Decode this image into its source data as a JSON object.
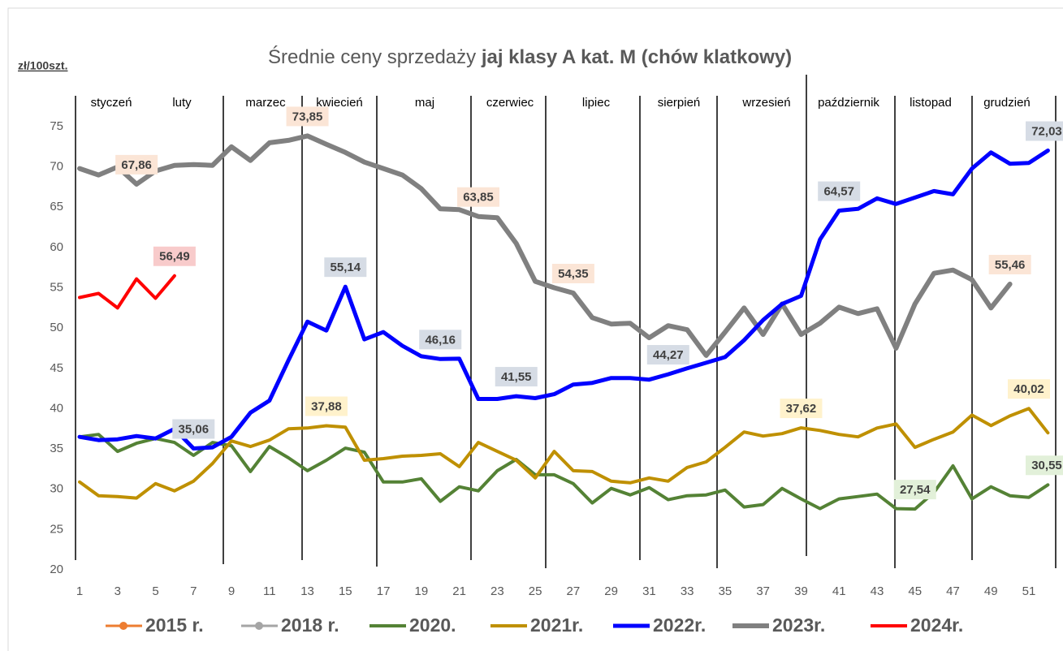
{
  "chart_data": {
    "type": "line",
    "title": "Średnie ceny sprzedaży ",
    "title_bold": "jaj klasy A kat.  M (chów klatkowy)",
    "y_label": "zł/100szt.",
    "months": [
      "styczeń",
      "luty",
      "marzec",
      "kwiecień",
      "maj",
      "czerwiec",
      "lipiec",
      "sierpień",
      "wrzesień",
      "październik",
      "listopad",
      "grudzień"
    ],
    "x": [
      1,
      2,
      3,
      4,
      5,
      6,
      7,
      8,
      9,
      10,
      11,
      12,
      13,
      14,
      15,
      16,
      17,
      18,
      19,
      20,
      21,
      22,
      23,
      24,
      25,
      26,
      27,
      28,
      29,
      30,
      31,
      32,
      33,
      34,
      35,
      36,
      37,
      38,
      39,
      40,
      41,
      42,
      43,
      44,
      45,
      46,
      47,
      48,
      49,
      50,
      51,
      52
    ],
    "xlim": [
      1,
      52
    ],
    "xticks": [
      1,
      3,
      5,
      7,
      9,
      11,
      13,
      15,
      17,
      19,
      21,
      23,
      25,
      27,
      29,
      31,
      33,
      35,
      37,
      39,
      41,
      43,
      45,
      47,
      49,
      51
    ],
    "ylim": [
      20,
      75
    ],
    "yticks": [
      20,
      25,
      30,
      35,
      40,
      45,
      50,
      55,
      60,
      65,
      70,
      75
    ],
    "grid": false,
    "legend": "bottom",
    "series": [
      {
        "name": "2015 r.",
        "color": "#ed7d31",
        "marker": true,
        "width": 3,
        "label_bg": "#fbe5d6",
        "values": [
          null,
          null,
          null,
          null,
          null,
          null,
          null,
          null,
          null,
          null,
          null,
          null,
          null,
          null,
          null,
          null,
          null,
          null,
          null,
          null,
          null,
          null,
          null,
          null,
          null,
          null,
          null,
          null,
          null,
          null,
          null,
          null,
          null,
          null,
          null,
          null,
          null,
          null,
          null,
          null,
          null,
          null,
          null,
          null,
          null,
          null,
          null,
          null,
          null,
          null,
          null,
          null
        ]
      },
      {
        "name": "2018 r.",
        "color": "#a5a5a5",
        "marker": true,
        "width": 3,
        "label_bg": "#ededed",
        "values": [
          null,
          null,
          null,
          null,
          null,
          null,
          null,
          null,
          null,
          null,
          null,
          null,
          null,
          null,
          null,
          null,
          null,
          null,
          null,
          null,
          null,
          null,
          null,
          null,
          null,
          null,
          null,
          null,
          null,
          null,
          null,
          null,
          null,
          null,
          null,
          null,
          null,
          null,
          null,
          null,
          null,
          null,
          null,
          null,
          null,
          null,
          null,
          null,
          null,
          null,
          null,
          null
        ]
      },
      {
        "name": "2020.",
        "color": "#548235",
        "marker": false,
        "width": 4,
        "label_bg": "#e2f0d9",
        "values": [
          36.5,
          36.8,
          34.7,
          35.7,
          36.3,
          35.8,
          34.2,
          35.8,
          35.4,
          32.2,
          35.3,
          33.9,
          32.3,
          33.6,
          35.1,
          34.6,
          30.9,
          30.9,
          31.3,
          28.5,
          30.3,
          29.8,
          32.3,
          33.7,
          31.8,
          31.8,
          30.7,
          28.3,
          30.1,
          29.3,
          30.2,
          28.7,
          29.2,
          29.3,
          29.9,
          27.8,
          28.1,
          30.1,
          28.8,
          27.6,
          28.8,
          29.1,
          29.4,
          27.6,
          27.54,
          29.6,
          32.9,
          28.8,
          30.3,
          29.2,
          29.0,
          30.55
        ],
        "value_labels": [
          null,
          null,
          null,
          null,
          null,
          null,
          null,
          null,
          null,
          null,
          null,
          null,
          null,
          null,
          null,
          null,
          null,
          null,
          null,
          null,
          null,
          null,
          null,
          null,
          null,
          null,
          null,
          null,
          null,
          null,
          null,
          null,
          null,
          null,
          null,
          null,
          null,
          null,
          null,
          null,
          null,
          null,
          null,
          null,
          "27,54",
          null,
          null,
          null,
          null,
          null,
          null,
          "30,55"
        ]
      },
      {
        "name": "2021r.",
        "color": "#bf9000",
        "marker": false,
        "width": 4,
        "label_bg": "#fff2cc",
        "values": [
          30.9,
          29.2,
          29.1,
          28.9,
          30.7,
          29.8,
          31.0,
          33.2,
          36.0,
          35.3,
          36.1,
          37.5,
          37.6,
          37.88,
          37.7,
          33.6,
          33.8,
          34.1,
          34.2,
          34.4,
          32.8,
          35.8,
          34.7,
          33.6,
          31.4,
          34.7,
          32.3,
          32.2,
          31.0,
          30.8,
          31.4,
          31.0,
          32.7,
          33.4,
          35.2,
          37.1,
          36.6,
          36.9,
          37.62,
          37.3,
          36.8,
          36.5,
          37.6,
          38.1,
          35.2,
          36.2,
          37.1,
          39.2,
          37.9,
          39.1,
          40.02,
          37.0
        ],
        "value_labels": [
          null,
          null,
          null,
          null,
          null,
          null,
          null,
          null,
          null,
          null,
          null,
          null,
          null,
          "37,88",
          null,
          null,
          null,
          null,
          null,
          null,
          null,
          null,
          null,
          null,
          null,
          null,
          null,
          null,
          null,
          null,
          null,
          null,
          null,
          null,
          null,
          null,
          null,
          null,
          "37,62",
          null,
          null,
          null,
          null,
          null,
          null,
          null,
          null,
          null,
          null,
          null,
          "40,02",
          null
        ]
      },
      {
        "name": "2022r.",
        "color": "#0000ff",
        "marker": false,
        "width": 5,
        "label_bg": "#d6dce5",
        "values": [
          36.5,
          36.1,
          36.2,
          36.6,
          36.3,
          37.5,
          35.06,
          35.2,
          36.5,
          39.5,
          41.0,
          46.0,
          50.8,
          49.7,
          55.14,
          48.6,
          49.5,
          47.8,
          46.5,
          46.16,
          46.2,
          41.2,
          41.2,
          41.55,
          41.3,
          41.8,
          43.0,
          43.2,
          43.8,
          43.8,
          43.6,
          44.27,
          45.0,
          45.7,
          46.4,
          48.5,
          51.0,
          53.0,
          54.0,
          61.0,
          64.57,
          64.8,
          66.1,
          65.4,
          66.2,
          67.0,
          66.6,
          69.8,
          71.8,
          70.4,
          70.5,
          72.03
        ],
        "value_labels": [
          null,
          null,
          null,
          null,
          null,
          null,
          "35,06",
          null,
          null,
          null,
          null,
          null,
          null,
          null,
          "55,14",
          null,
          null,
          null,
          null,
          "46,16",
          null,
          null,
          null,
          "41,55",
          null,
          null,
          null,
          null,
          null,
          null,
          null,
          "44,27",
          null,
          null,
          null,
          null,
          null,
          null,
          null,
          null,
          "64,57",
          null,
          null,
          null,
          null,
          null,
          null,
          null,
          null,
          null,
          null,
          "72,03"
        ]
      },
      {
        "name": "2023r.",
        "color": "#808080",
        "marker": false,
        "width": 6,
        "label_bg": "#fbe5d6",
        "values": [
          69.8,
          69.0,
          70.0,
          67.86,
          69.5,
          70.2,
          70.3,
          70.2,
          72.5,
          70.8,
          73.0,
          73.3,
          73.85,
          72.8,
          71.8,
          70.6,
          69.8,
          69.0,
          67.3,
          64.8,
          64.7,
          63.85,
          63.7,
          60.5,
          55.8,
          55.0,
          54.35,
          51.3,
          50.5,
          50.6,
          48.8,
          50.3,
          49.8,
          46.6,
          49.5,
          52.5,
          49.2,
          53.0,
          49.2,
          50.6,
          52.6,
          51.8,
          52.4,
          47.5,
          53.0,
          56.8,
          57.2,
          56.0,
          52.5,
          55.46,
          null,
          null
        ],
        "value_labels": [
          null,
          null,
          null,
          "67,86",
          null,
          null,
          null,
          null,
          null,
          null,
          null,
          null,
          "73,85",
          null,
          null,
          null,
          null,
          null,
          null,
          null,
          null,
          "63,85",
          null,
          null,
          null,
          null,
          "54,35",
          null,
          null,
          null,
          null,
          null,
          null,
          null,
          null,
          null,
          null,
          null,
          null,
          null,
          null,
          null,
          null,
          null,
          null,
          null,
          null,
          null,
          null,
          "55,46",
          null,
          null
        ]
      },
      {
        "name": "2024r.",
        "color": "#ff0000",
        "marker": false,
        "width": 4,
        "label_bg": "#f8cbcb",
        "values": [
          53.8,
          54.3,
          52.5,
          56.1,
          53.7,
          56.49,
          null,
          null,
          null,
          null,
          null,
          null,
          null,
          null,
          null,
          null,
          null,
          null,
          null,
          null,
          null,
          null,
          null,
          null,
          null,
          null,
          null,
          null,
          null,
          null,
          null,
          null,
          null,
          null,
          null,
          null,
          null,
          null,
          null,
          null,
          null,
          null,
          null,
          null,
          null,
          null,
          null,
          null,
          null,
          null,
          null,
          null
        ],
        "value_labels": [
          null,
          null,
          null,
          null,
          null,
          "56,49",
          null,
          null,
          null,
          null,
          null,
          null,
          null,
          null,
          null,
          null,
          null,
          null,
          null,
          null,
          null,
          null,
          null,
          null,
          null,
          null,
          null,
          null,
          null,
          null,
          null,
          null,
          null,
          null,
          null,
          null,
          null,
          null,
          null,
          null,
          null,
          null,
          null,
          null,
          null,
          null,
          null,
          null,
          null,
          null,
          null,
          null
        ]
      }
    ]
  }
}
